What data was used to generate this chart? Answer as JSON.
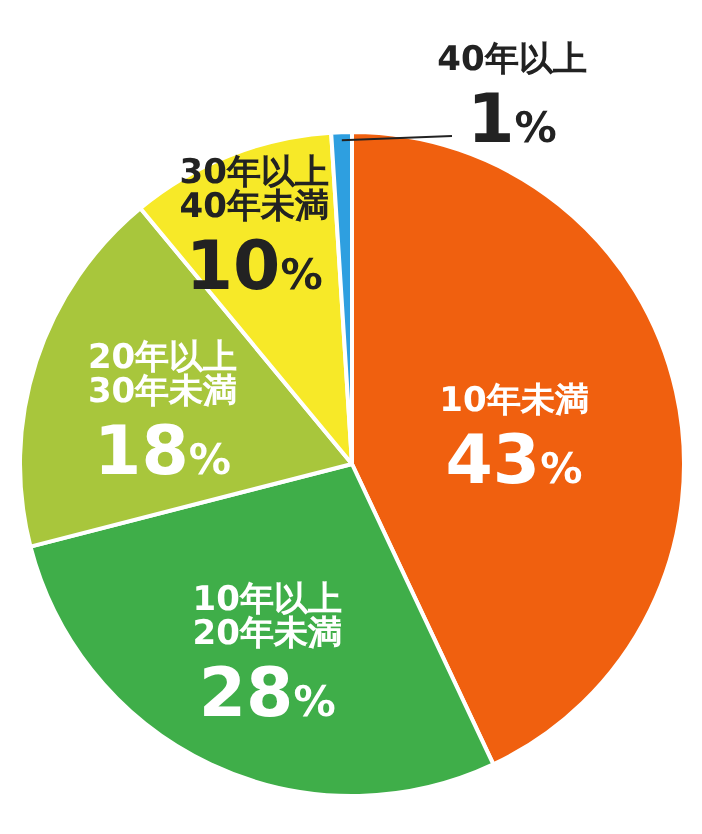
{
  "chart_data": {
    "type": "pie",
    "categories": [
      "10年未満",
      "10年以上20年未満",
      "20年以上30年未満",
      "30年以上40年未満",
      "40年以上"
    ],
    "values": [
      43,
      28,
      18,
      10,
      1
    ],
    "value_labels": [
      "43%",
      "28%",
      "18%",
      "10%",
      "1%"
    ],
    "colors": [
      "#f0600f",
      "#3fae49",
      "#a8c63c",
      "#f7e928",
      "#2e9fe0"
    ]
  }
}
